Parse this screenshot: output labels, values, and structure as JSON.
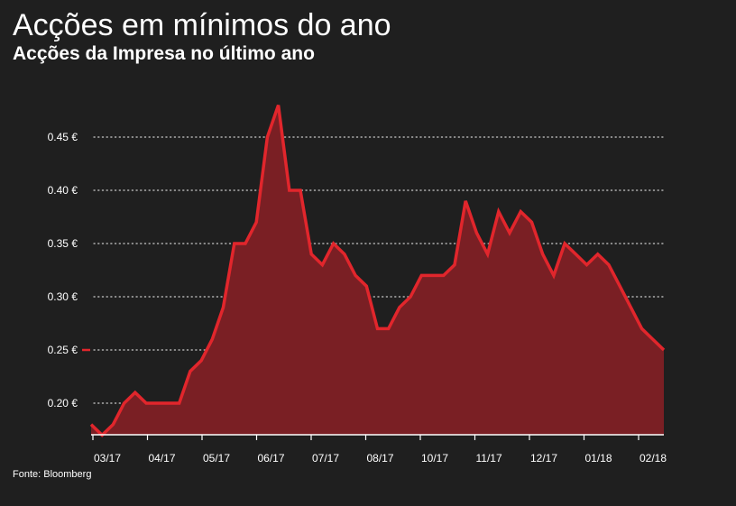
{
  "header": {
    "title": "Acções em mínimos do ano",
    "subtitle": "Acções da Impresa no último ano"
  },
  "footer": {
    "source": "Fonte: Bloomberg"
  },
  "colors": {
    "background": "#1f1f1f",
    "line": "#e1262c",
    "area": "#7a1f24",
    "grid": "#cccccc",
    "text": "#ffffff"
  },
  "chart_data": {
    "type": "area",
    "title": "Acções em mínimos do ano",
    "subtitle": "Acções da Impresa no último ano",
    "xlabel": "",
    "ylabel": "",
    "grid": "horizontal-dotted",
    "legend": "none",
    "ylim": [
      0.165,
      0.47
    ],
    "y_ticks": [
      0.2,
      0.25,
      0.3,
      0.35,
      0.4,
      0.45
    ],
    "y_tick_labels": [
      "0.20 €",
      "0.25 €",
      "0.30 €",
      "0.35 €",
      "0.40 €",
      "0.45 €"
    ],
    "highlight_value": 0.25,
    "x_tick_labels": [
      "03/17",
      "04/17",
      "05/17",
      "06/17",
      "07/17",
      "08/17",
      "10/17",
      "11/17",
      "12/17",
      "01/18",
      "02/18"
    ],
    "series": [
      {
        "values": [
          0.18,
          0.17,
          0.18,
          0.2,
          0.21,
          0.2,
          0.2,
          0.2,
          0.2,
          0.23,
          0.24,
          0.26,
          0.29,
          0.35,
          0.35,
          0.37,
          0.45,
          0.48,
          0.4,
          0.4,
          0.34,
          0.33,
          0.35,
          0.34,
          0.32,
          0.31,
          0.27,
          0.27,
          0.29,
          0.3,
          0.32,
          0.32,
          0.32,
          0.33,
          0.39,
          0.36,
          0.34,
          0.38,
          0.36,
          0.38,
          0.37,
          0.34,
          0.32,
          0.35,
          0.34,
          0.33,
          0.34,
          0.33,
          0.31,
          0.29,
          0.27,
          0.26,
          0.25
        ]
      }
    ]
  }
}
